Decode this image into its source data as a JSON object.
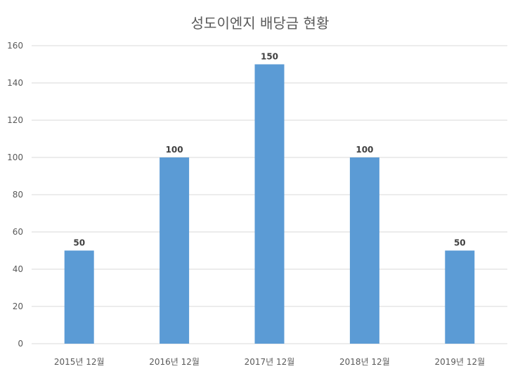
{
  "chart_data": {
    "type": "bar",
    "title": "성도이엔지 배당금 현황",
    "categories": [
      "2015년 12월",
      "2016년 12월",
      "2017년 12월",
      "2018년 12월",
      "2019년 12월"
    ],
    "values": [
      50,
      100,
      150,
      100,
      50
    ],
    "ylim": [
      0,
      160
    ],
    "yticks": [
      0,
      20,
      40,
      60,
      80,
      100,
      120,
      140,
      160
    ],
    "grid": true,
    "legend": "none",
    "data_labels": true,
    "xlabel": "",
    "ylabel": "",
    "colors": {
      "bar": "#5b9bd5",
      "grid": "#d9d9d9",
      "text": "#595959"
    }
  }
}
